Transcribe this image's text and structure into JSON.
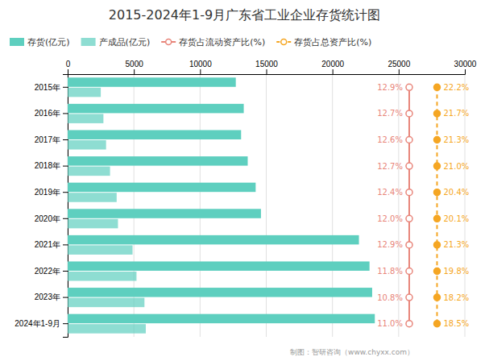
{
  "chart_data": {
    "type": "bar",
    "orientation": "horizontal",
    "title": "2015-2024年1-9月广东省工业企业存货统计图",
    "categories": [
      "2015年",
      "2016年",
      "2017年",
      "2018年",
      "2019年",
      "2020年",
      "2021年",
      "2022年",
      "2023年",
      "2024年1-9月"
    ],
    "series": [
      {
        "name": "存货(亿元)",
        "color": "#5ECFBF",
        "values": [
          12700,
          13300,
          13100,
          13600,
          14200,
          14600,
          22000,
          22800,
          23000,
          23200
        ]
      },
      {
        "name": "产成品(亿元)",
        "color": "#5ECFBF",
        "values": [
          2500,
          2700,
          2900,
          3200,
          3700,
          3800,
          4900,
          5200,
          5800,
          5900
        ]
      },
      {
        "name": "存货占流动资产比(%)",
        "type": "line",
        "color": "#E8857A",
        "line_style": "solid",
        "marker": "circle",
        "data_labels": true,
        "values": [
          12.9,
          12.7,
          12.6,
          12.7,
          12.4,
          12.0,
          12.9,
          11.8,
          10.8,
          11.0
        ],
        "value_labels": [
          "12.9%",
          "12.7%",
          "12.6%",
          "12.7%",
          "12.4%",
          "12.0%",
          "12.9%",
          "11.8%",
          "10.8%",
          "11.0%"
        ]
      },
      {
        "name": "存货占总资产比(%)",
        "type": "line",
        "color": "#F5A623",
        "line_style": "dashed",
        "marker": "circle",
        "data_labels": true,
        "values": [
          22.2,
          21.7,
          21.3,
          21.0,
          20.4,
          20.1,
          21.3,
          19.8,
          18.2,
          18.5
        ],
        "value_labels": [
          "22.2%",
          "21.7%",
          "21.3%",
          "21.0%",
          "20.4%",
          "20.1%",
          "21.3%",
          "19.8%",
          "18.2%",
          "18.5%"
        ]
      }
    ],
    "xlim": [
      0,
      30000
    ],
    "xticks": [
      0,
      5000,
      10000,
      15000,
      20000,
      25000,
      30000
    ],
    "grid": true,
    "legend": "upper left",
    "annotations": [
      "制图：智研咨询（www.chyxx.com）"
    ]
  }
}
